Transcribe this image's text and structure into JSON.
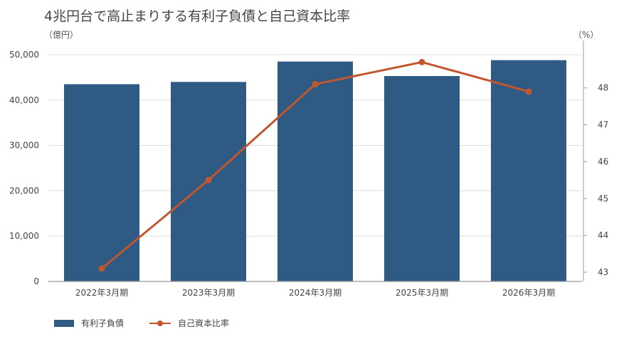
{
  "chart_data": {
    "type": "bar",
    "title": "4兆円台で高止まりする有利子負債と自己資本比率",
    "y_unit_left": "（億円）",
    "y_unit_right": "（%）",
    "categories": [
      "2022年3月期",
      "2023年3月期",
      "2024年3月期",
      "2025年3月期",
      "2026年3月期"
    ],
    "series": [
      {
        "name": "有利子負債",
        "type": "bar",
        "axis": "left",
        "color": "#2e5a84",
        "values": [
          43500,
          44000,
          48500,
          45300,
          48800
        ]
      },
      {
        "name": "自己資本比率",
        "type": "line",
        "axis": "right",
        "color": "#c1562f",
        "values": [
          43.1,
          45.5,
          48.1,
          48.7,
          47.9
        ]
      }
    ],
    "y_left": {
      "min": 0,
      "max": 50000,
      "ticks": [
        "0",
        "10,000",
        "20,000",
        "30,000",
        "40,000",
        "50,000"
      ],
      "tick_values": [
        0,
        10000,
        20000,
        30000,
        40000,
        50000
      ]
    },
    "y_right": {
      "min": 42.75,
      "max": 48.9,
      "ticks": [
        "43",
        "44",
        "45",
        "46",
        "47",
        "48"
      ],
      "tick_values": [
        43,
        44,
        45,
        46,
        47,
        48
      ]
    },
    "grid": true,
    "legend": "bottom-left"
  }
}
